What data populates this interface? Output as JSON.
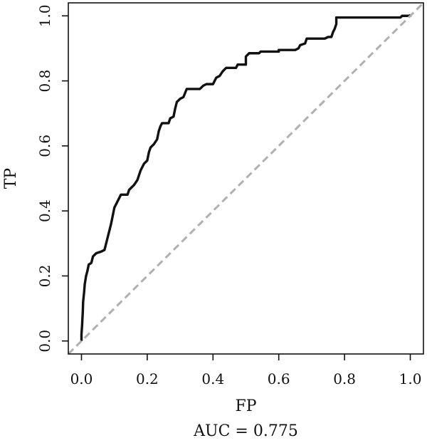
{
  "chart_data": {
    "type": "line",
    "xlabel": "FP",
    "ylabel": "TP",
    "caption": "AUC = 0.775",
    "xlim": [
      -0.04,
      1.04
    ],
    "ylim": [
      -0.04,
      1.04
    ],
    "x_ticks": [
      0.0,
      0.2,
      0.4,
      0.6,
      0.8,
      1.0
    ],
    "x_tick_labels": [
      "0.0",
      "0.2",
      "0.4",
      "0.6",
      "0.8",
      "1.0"
    ],
    "y_ticks": [
      0.0,
      0.2,
      0.4,
      0.6,
      0.8,
      1.0
    ],
    "y_tick_labels": [
      "0.0",
      "0.2",
      "0.4",
      "0.6",
      "0.8",
      "1.0"
    ],
    "grid": false,
    "legend": "none",
    "series": [
      {
        "style": "solid",
        "color": "#111111",
        "points": [
          [
            0.0,
            0.0
          ],
          [
            0.0,
            0.02
          ],
          [
            0.002,
            0.05
          ],
          [
            0.004,
            0.09
          ],
          [
            0.005,
            0.12
          ],
          [
            0.008,
            0.15
          ],
          [
            0.01,
            0.175
          ],
          [
            0.014,
            0.2
          ],
          [
            0.018,
            0.215
          ],
          [
            0.022,
            0.235
          ],
          [
            0.03,
            0.24
          ],
          [
            0.035,
            0.26
          ],
          [
            0.045,
            0.27
          ],
          [
            0.06,
            0.275
          ],
          [
            0.07,
            0.28
          ],
          [
            0.075,
            0.3
          ],
          [
            0.08,
            0.32
          ],
          [
            0.085,
            0.34
          ],
          [
            0.09,
            0.36
          ],
          [
            0.095,
            0.385
          ],
          [
            0.1,
            0.41
          ],
          [
            0.11,
            0.43
          ],
          [
            0.12,
            0.45
          ],
          [
            0.14,
            0.45
          ],
          [
            0.145,
            0.465
          ],
          [
            0.16,
            0.48
          ],
          [
            0.17,
            0.495
          ],
          [
            0.175,
            0.51
          ],
          [
            0.18,
            0.525
          ],
          [
            0.19,
            0.545
          ],
          [
            0.2,
            0.555
          ],
          [
            0.205,
            0.58
          ],
          [
            0.21,
            0.595
          ],
          [
            0.22,
            0.605
          ],
          [
            0.23,
            0.62
          ],
          [
            0.235,
            0.645
          ],
          [
            0.24,
            0.66
          ],
          [
            0.245,
            0.67
          ],
          [
            0.265,
            0.67
          ],
          [
            0.27,
            0.685
          ],
          [
            0.28,
            0.69
          ],
          [
            0.285,
            0.715
          ],
          [
            0.29,
            0.735
          ],
          [
            0.3,
            0.745
          ],
          [
            0.31,
            0.75
          ],
          [
            0.32,
            0.775
          ],
          [
            0.36,
            0.775
          ],
          [
            0.37,
            0.785
          ],
          [
            0.38,
            0.79
          ],
          [
            0.4,
            0.79
          ],
          [
            0.405,
            0.8
          ],
          [
            0.41,
            0.81
          ],
          [
            0.42,
            0.815
          ],
          [
            0.43,
            0.83
          ],
          [
            0.44,
            0.84
          ],
          [
            0.47,
            0.84
          ],
          [
            0.475,
            0.85
          ],
          [
            0.5,
            0.85
          ],
          [
            0.5,
            0.875
          ],
          [
            0.51,
            0.885
          ],
          [
            0.54,
            0.885
          ],
          [
            0.545,
            0.89
          ],
          [
            0.6,
            0.89
          ],
          [
            0.6,
            0.895
          ],
          [
            0.65,
            0.895
          ],
          [
            0.66,
            0.9
          ],
          [
            0.665,
            0.91
          ],
          [
            0.68,
            0.915
          ],
          [
            0.685,
            0.93
          ],
          [
            0.74,
            0.93
          ],
          [
            0.75,
            0.935
          ],
          [
            0.76,
            0.935
          ],
          [
            0.765,
            0.95
          ],
          [
            0.77,
            0.96
          ],
          [
            0.775,
            0.975
          ],
          [
            0.775,
            0.995
          ],
          [
            0.97,
            0.995
          ],
          [
            0.975,
            1.0
          ],
          [
            1.0,
            1.0
          ],
          [
            1.0,
            1.005
          ]
        ]
      },
      {
        "style": "dashed",
        "color": "#b0b0b0",
        "points": [
          [
            -0.04,
            -0.04
          ],
          [
            1.04,
            1.04
          ]
        ]
      }
    ]
  }
}
